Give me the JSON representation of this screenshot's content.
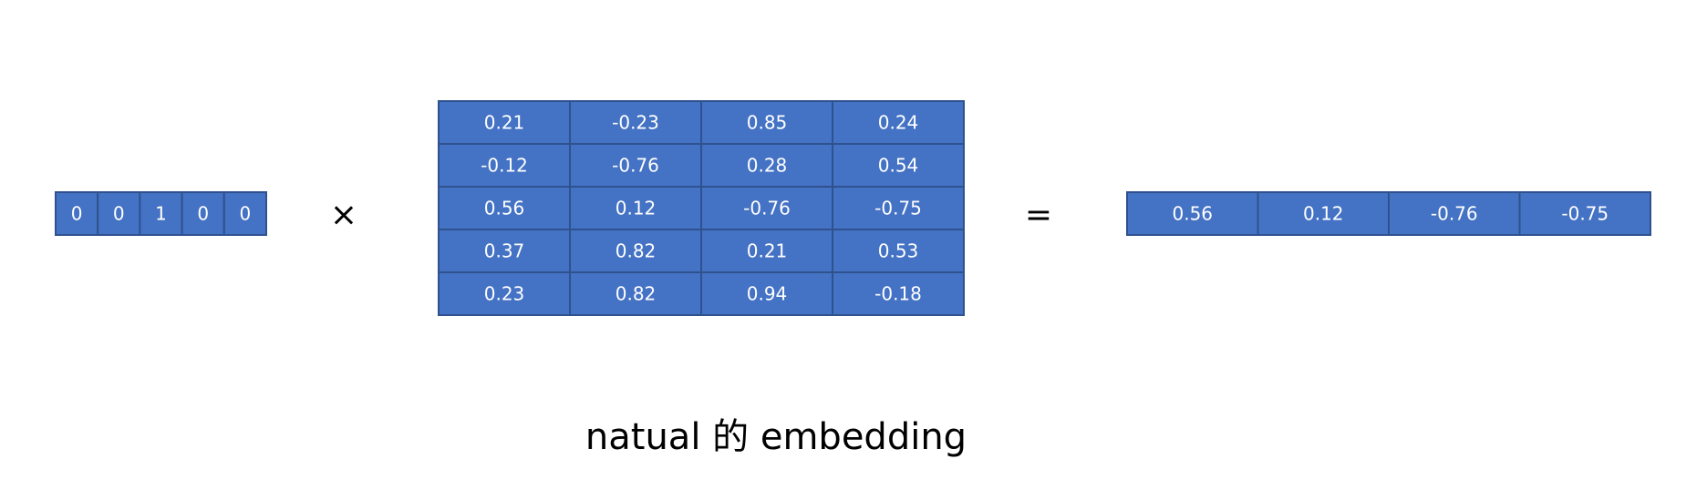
{
  "one_hot": [
    0,
    0,
    1,
    0,
    0
  ],
  "times_sign": "×",
  "matrix": [
    [
      0.21,
      -0.23,
      0.85,
      0.24
    ],
    [
      -0.12,
      -0.76,
      0.28,
      0.54
    ],
    [
      0.56,
      0.12,
      -0.76,
      -0.75
    ],
    [
      0.37,
      0.82,
      0.21,
      0.53
    ],
    [
      0.23,
      0.82,
      0.94,
      -0.18
    ]
  ],
  "equals_sign": "=",
  "result": [
    0.56,
    0.12,
    -0.76,
    -0.75
  ],
  "caption": "natual 的 embedding"
}
